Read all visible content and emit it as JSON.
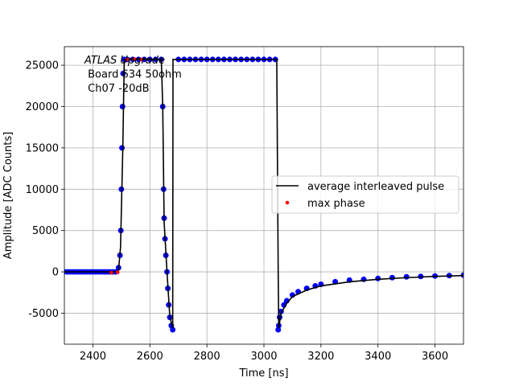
{
  "chart_data": {
    "type": "scatter",
    "x_label": "Time [ns]",
    "y_label": "Amplitude [ADC Counts]",
    "annotation": [
      "ATLAS Upgrade",
      " Board 634 50ohm",
      " Ch07 -20dB"
    ],
    "xlim": [
      2300,
      3700
    ],
    "ylim": [
      -8750,
      27250
    ],
    "xticks": [
      2400,
      2600,
      2800,
      3000,
      3200,
      3400,
      3600
    ],
    "yticks": [
      -5000,
      0,
      5000,
      10000,
      15000,
      20000,
      25000
    ],
    "grid": true,
    "legend_position": "center right",
    "points": {
      "color": "#0000ff",
      "x": [
        2300,
        2310,
        2320,
        2330,
        2340,
        2350,
        2360,
        2370,
        2380,
        2390,
        2400,
        2410,
        2420,
        2430,
        2440,
        2450,
        2460,
        2470,
        2480,
        2490,
        2495,
        2498,
        2500,
        2502,
        2504,
        2506,
        2510,
        2520,
        2540,
        2560,
        2580,
        2600,
        2620,
        2640,
        2645,
        2648,
        2650,
        2653,
        2656,
        2660,
        2663,
        2666,
        2670,
        2675,
        2680,
        2700,
        2720,
        2740,
        2760,
        2780,
        2800,
        2820,
        2840,
        2860,
        2880,
        2900,
        2920,
        2940,
        2960,
        2980,
        3000,
        3020,
        3040,
        3050,
        3052,
        3055,
        3060,
        3070,
        3080,
        3100,
        3120,
        3150,
        3180,
        3200,
        3250,
        3300,
        3350,
        3400,
        3450,
        3500,
        3550,
        3600,
        3650,
        3700
      ],
      "values": [
        0,
        0,
        0,
        0,
        0,
        0,
        0,
        0,
        0,
        0,
        0,
        0,
        0,
        0,
        0,
        0,
        0,
        0,
        0,
        500,
        2000,
        5000,
        10000,
        15000,
        20000,
        24000,
        25700,
        25700,
        25700,
        25700,
        25700,
        25700,
        25700,
        25700,
        20000,
        10000,
        6500,
        4000,
        2000,
        0,
        -2000,
        -4000,
        -5500,
        -6500,
        -7000,
        25700,
        25700,
        25700,
        25700,
        25700,
        25700,
        25700,
        25700,
        25700,
        25700,
        25700,
        25700,
        25700,
        25700,
        25700,
        25700,
        25700,
        25700,
        -7000,
        -6500,
        -5500,
        -4800,
        -4000,
        -3500,
        -2800,
        -2400,
        -2000,
        -1700,
        -1500,
        -1200,
        -1000,
        -900,
        -800,
        -700,
        -600,
        -550,
        -500,
        -450,
        -400
      ]
    },
    "series": [
      {
        "name": "average interleaved pulse",
        "color": "#000000",
        "x": [
          2300,
          2480,
          2490,
          2497,
          2505,
          2510,
          2640,
          2645,
          2650,
          2660,
          2670,
          2680,
          2681,
          3045,
          3050,
          3052,
          3060,
          3080,
          3100,
          3150,
          3200,
          3300,
          3400,
          3500,
          3600,
          3700
        ],
        "values": [
          0,
          0,
          200,
          3000,
          15000,
          25700,
          25700,
          20000,
          6000,
          0,
          -5500,
          -6800,
          25700,
          25700,
          0,
          -6800,
          -5000,
          -3800,
          -3000,
          -2200,
          -1700,
          -1200,
          -900,
          -700,
          -550,
          -450
        ]
      },
      {
        "name": "max phase",
        "color": "#ff0000",
        "x": [
          2465,
          2487,
          2520,
          2545,
          2570
        ],
        "values": [
          -100,
          -50,
          25700,
          25750,
          25700
        ]
      }
    ]
  }
}
